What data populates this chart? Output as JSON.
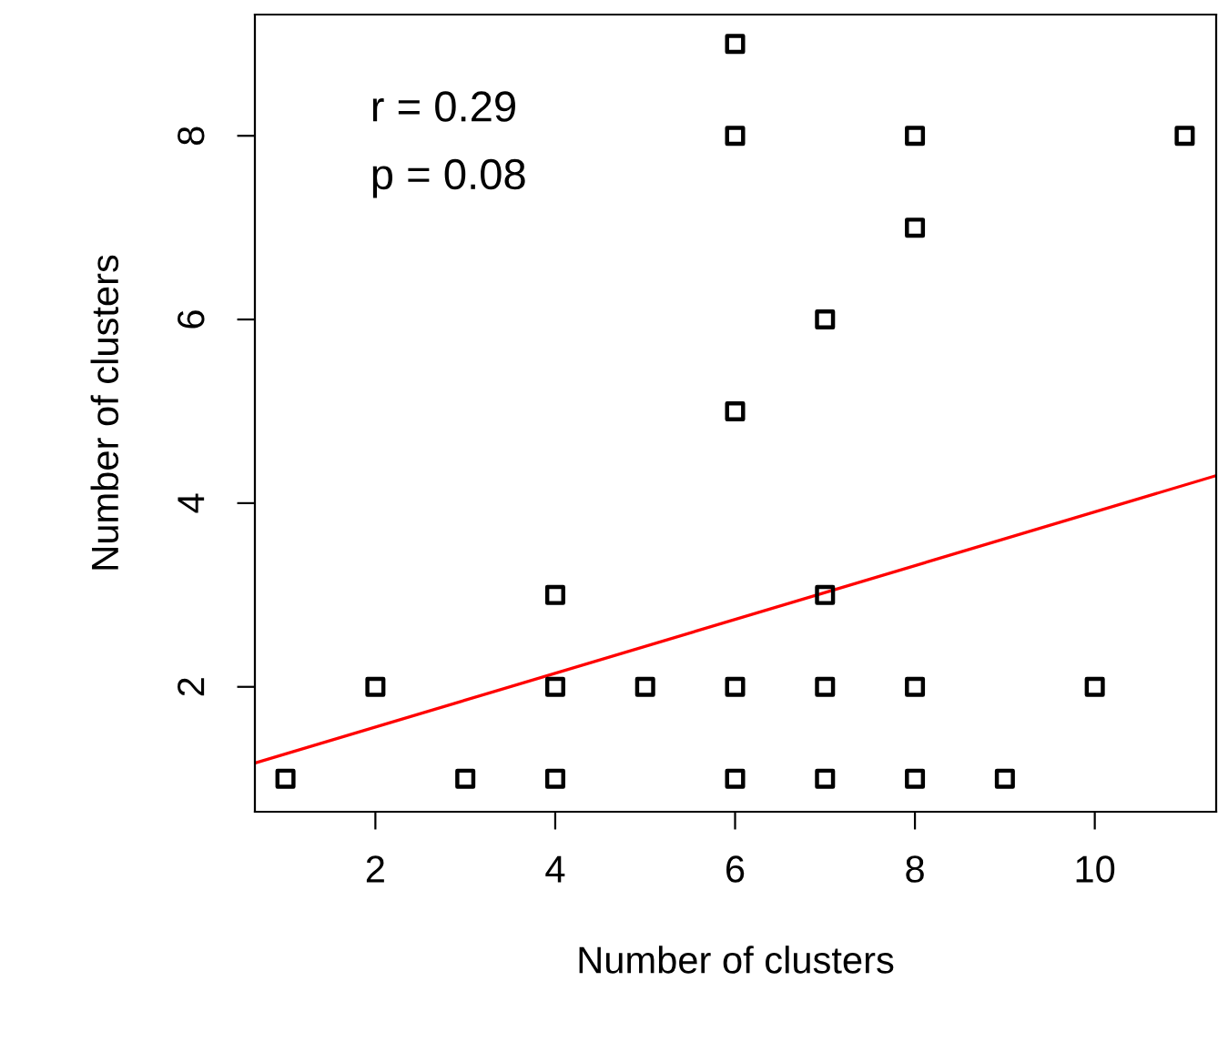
{
  "chart_data": {
    "type": "scatter",
    "xlabel": "Number of clusters",
    "ylabel": "Number of clusters",
    "xlim": [
      0.66,
      11.35
    ],
    "ylim": [
      0.64,
      9.32
    ],
    "xticks": [
      2,
      4,
      6,
      8,
      10
    ],
    "yticks": [
      2,
      4,
      6,
      8
    ],
    "grid": false,
    "annotations": [
      "r = 0.29",
      "p = 0.08"
    ],
    "series": [
      {
        "color": "#000000",
        "marker": "square",
        "x": [
          1,
          2,
          3,
          4,
          4,
          4,
          5,
          6,
          6,
          6,
          6,
          6,
          7,
          7,
          7,
          7,
          8,
          8,
          8,
          8,
          9,
          10,
          11
        ],
        "values": [
          1,
          2,
          1,
          3,
          2,
          1,
          2,
          9,
          8,
          5,
          2,
          1,
          6,
          3,
          2,
          1,
          8,
          7,
          2,
          1,
          1,
          2,
          8
        ]
      },
      {
        "type": "line",
        "marker": "none",
        "color": "#ff0000",
        "x": [
          0.66,
          11.35
        ],
        "values": [
          1.17,
          4.3
        ]
      }
    ]
  }
}
